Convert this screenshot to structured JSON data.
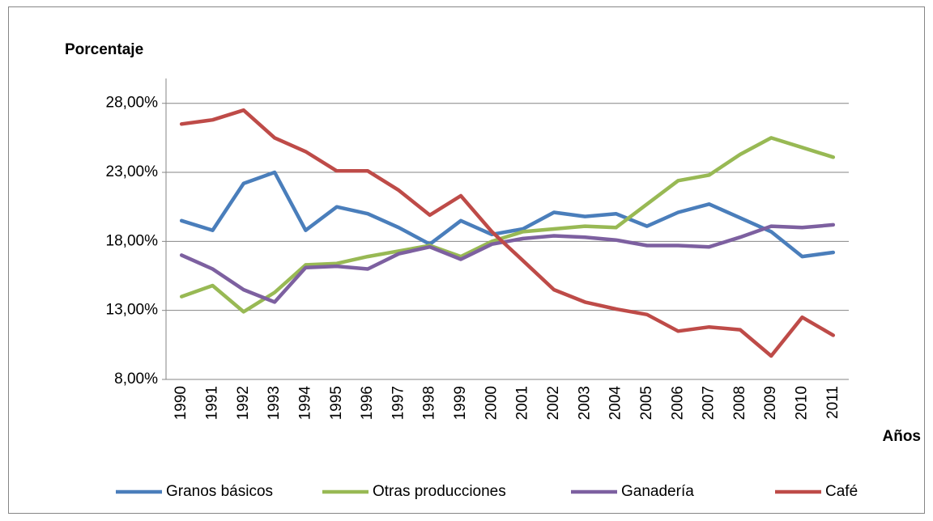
{
  "chart_data": {
    "type": "line",
    "y_axis_label": "Porcentaje",
    "x_axis_label": "Años",
    "categories": [
      "1990",
      "1991",
      "1992",
      "1993",
      "1994",
      "1995",
      "1996",
      "1997",
      "1998",
      "1999",
      "2000",
      "2001",
      "2002",
      "2003",
      "2004",
      "2005",
      "2006",
      "2007",
      "2008",
      "2009",
      "2010",
      "2011"
    ],
    "series": [
      {
        "name": "Granos básicos",
        "color": "#4a7ebb",
        "values": [
          19.5,
          18.8,
          22.2,
          23.0,
          18.8,
          20.5,
          20.0,
          19.0,
          17.8,
          19.5,
          18.5,
          18.9,
          20.1,
          19.8,
          20.0,
          19.1,
          20.1,
          20.7,
          19.7,
          18.7,
          16.9,
          17.2
        ]
      },
      {
        "name": "Otras producciones",
        "color": "#98b954",
        "values": [
          14.0,
          14.8,
          12.9,
          14.3,
          16.3,
          16.4,
          16.9,
          17.3,
          17.7,
          16.9,
          18.0,
          18.7,
          18.9,
          19.1,
          19.0,
          20.7,
          22.4,
          22.8,
          24.3,
          25.5,
          24.8,
          24.1
        ]
      },
      {
        "name": "Ganadería",
        "color": "#7d60a0",
        "values": [
          17.0,
          16.0,
          14.5,
          13.6,
          16.1,
          16.2,
          16.0,
          17.1,
          17.6,
          16.7,
          17.8,
          18.2,
          18.4,
          18.3,
          18.1,
          17.7,
          17.7,
          17.6,
          18.3,
          19.1,
          19.0,
          19.2
        ]
      },
      {
        "name": "Café",
        "color": "#be4b48",
        "values": [
          26.5,
          26.8,
          27.5,
          25.5,
          24.5,
          23.1,
          23.1,
          21.7,
          19.9,
          21.3,
          18.7,
          16.6,
          14.5,
          13.6,
          13.1,
          12.7,
          11.5,
          11.8,
          11.6,
          9.7,
          12.5,
          11.2
        ]
      }
    ],
    "ylim": [
      8,
      29.8
    ],
    "yticks": [
      {
        "value": 8,
        "label": "8,00%"
      },
      {
        "value": 13,
        "label": "13,00%"
      },
      {
        "value": 18,
        "label": "18,00%"
      },
      {
        "value": 23,
        "label": "23,00%"
      },
      {
        "value": 28,
        "label": "28,00%"
      }
    ],
    "grid": true,
    "legend": "bottom"
  }
}
